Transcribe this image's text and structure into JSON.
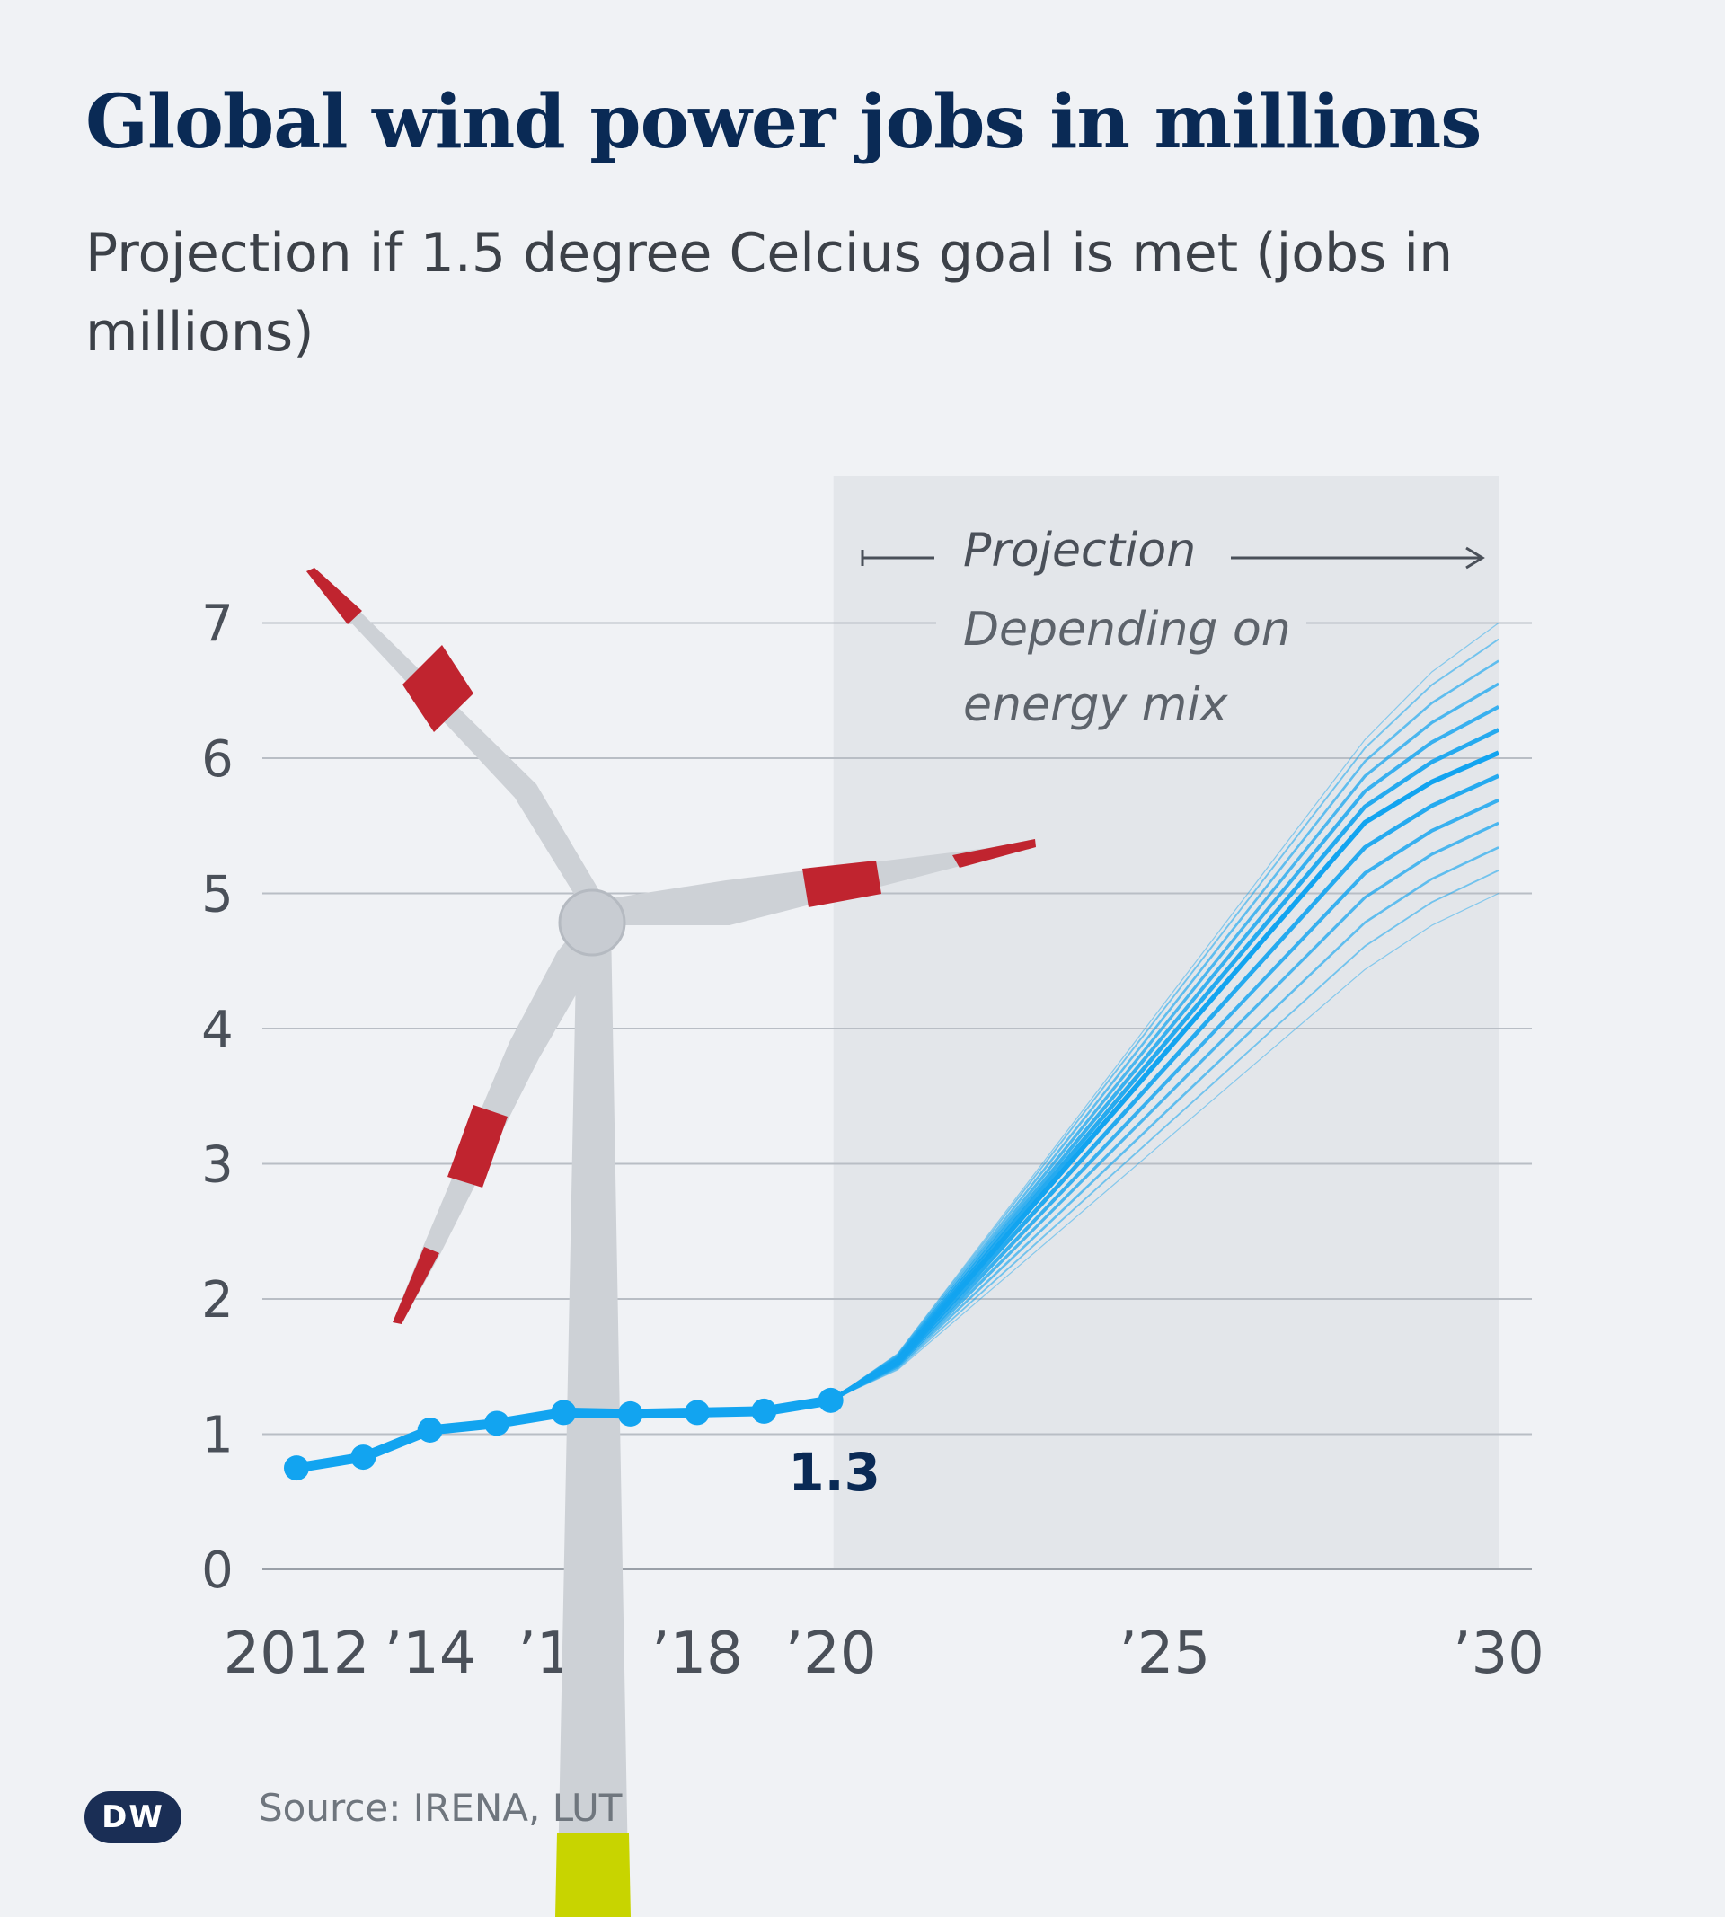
{
  "title": "Global wind power jobs in millions",
  "subtitle": "Projection if 1.5 degree Celcius goal is met (jobs in millions)",
  "source": "Source: IRENA, LUT",
  "logo_text": "DW",
  "colors": {
    "background": "#f0f2f5",
    "title": "#0a2a55",
    "series": "#12a4f0",
    "projection_band": "#e3e6ea",
    "turbine_grey": "#cdd1d6",
    "turbine_red": "#c0242f",
    "turbine_base": "#c8d400"
  },
  "projection_labels": {
    "heading": "Projection",
    "note_line1": "Depending on",
    "note_line2": "energy mix"
  },
  "chart_data": {
    "type": "line",
    "title": "Global wind power jobs in millions",
    "subtitle": "Projection if 1.5 degree Celcius goal is met (jobs in millions)",
    "xlabel": "",
    "ylabel": "",
    "x_tick_values": [
      2012,
      2014,
      2016,
      2018,
      2020,
      2025,
      2030
    ],
    "x_tick_labels": [
      "2012",
      "’14",
      "’16",
      "’18",
      "’20",
      "’25",
      "’30"
    ],
    "y_ticks": [
      0,
      1,
      2,
      3,
      4,
      5,
      6,
      7
    ],
    "xlim": [
      2012,
      2030
    ],
    "ylim": [
      0,
      7
    ],
    "grid": true,
    "projection_range": [
      2020,
      2030
    ],
    "series": [
      {
        "x": [
          2012,
          2013,
          2014,
          2015,
          2016,
          2017,
          2018,
          2019,
          2020
        ],
        "values": [
          0.75,
          0.83,
          1.03,
          1.08,
          1.16,
          1.15,
          1.16,
          1.17,
          1.25
        ]
      }
    ],
    "projection_ends_2030": [
      5.0,
      5.17,
      5.34,
      5.52,
      5.69,
      5.87,
      6.04,
      6.21,
      6.38,
      6.55,
      6.72,
      6.88,
      7.0
    ],
    "annotations": [
      {
        "x": 2020,
        "y": 1.25,
        "text": "1.3"
      }
    ]
  }
}
